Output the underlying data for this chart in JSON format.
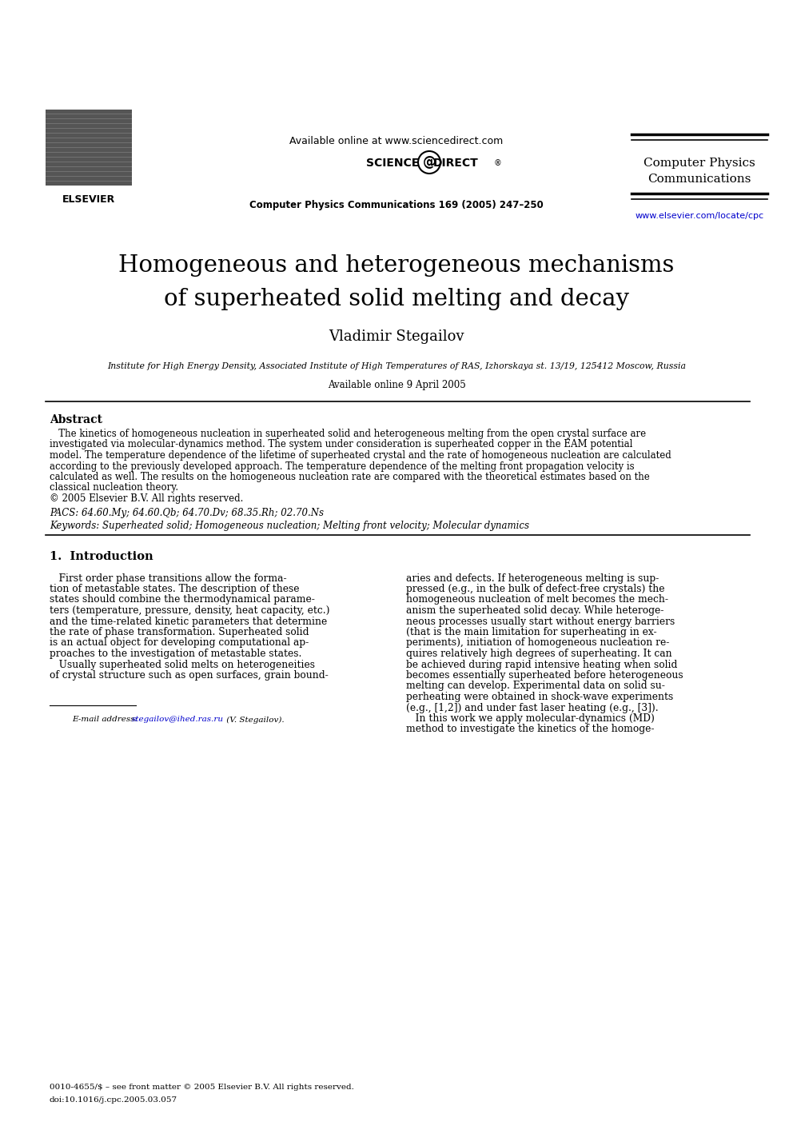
{
  "page_bg": "#ffffff",
  "title_line1": "Homogeneous and heterogeneous mechanisms",
  "title_line2": "of superheated solid melting and decay",
  "author": "Vladimir Stegailov",
  "affiliation": "Institute for High Energy Density, Associated Institute of High Temperatures of RAS, Izhorskaya st. 13/19, 125412 Moscow, Russia",
  "available_online": "Available online 9 April 2005",
  "journal_name_top": "Available online at www.sciencedirect.com",
  "journal_ref": "Computer Physics Communications 169 (2005) 247–250",
  "journal_right1": "Computer Physics",
  "journal_right2": "Communications",
  "journal_url": "www.elsevier.com/locate/cpc",
  "abstract_title": "Abstract",
  "pacs": "PACS: 64.60.My; 64.60.Qb; 64.70.Dv; 68.35.Rh; 02.70.Ns",
  "keywords": "Keywords: Superheated solid; Homogeneous nucleation; Melting front velocity; Molecular dynamics",
  "section1_title": "1.  Introduction",
  "footnote_email_label": "E-mail address: ",
  "footnote_email_link": "stegailov@ihed.ras.ru",
  "footnote_email_rest": " (V. Stegailov).",
  "footnote_issn": "0010-4655/$ – see front matter © 2005 Elsevier B.V. All rights reserved.",
  "footnote_doi": "doi:10.1016/j.cpc.2005.03.057",
  "elsevier_text": "ELSEVIER",
  "line_color": "#000000",
  "link_color": "#0000cc",
  "text_color": "#000000"
}
